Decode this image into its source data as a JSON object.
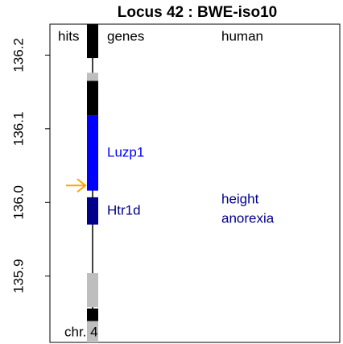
{
  "chart_data": {
    "type": "locus",
    "title": "Locus 42 : BWE-iso10",
    "column_labels": [
      "hits",
      "genes",
      "human"
    ],
    "chromosome_label": "chr. 4",
    "ylim": [
      135.81,
      136.242
    ],
    "yticks": [
      {
        "value": 135.9,
        "label": "135.9"
      },
      {
        "value": 136.0,
        "label": "136.0"
      },
      {
        "value": 136.1,
        "label": "136.1"
      },
      {
        "value": 136.2,
        "label": "136.2"
      }
    ],
    "segments": [
      {
        "range": [
          136.196,
          136.242
        ],
        "color": "#000000"
      },
      {
        "range": [
          136.165,
          136.176
        ],
        "color": "#bebebe"
      },
      {
        "range": [
          136.118,
          136.165
        ],
        "color": "#000000"
      },
      {
        "range": [
          136.016,
          136.118
        ],
        "color": "#0000ff",
        "name": "Luzp1"
      },
      {
        "range": [
          135.97,
          136.007
        ],
        "color": "#00008b",
        "name": "Htr1d"
      },
      {
        "range": [
          135.858,
          135.904
        ],
        "color": "#bebebe"
      },
      {
        "range": [
          135.839,
          135.856
        ],
        "color": "#000000"
      },
      {
        "range": [
          135.81,
          135.839
        ],
        "color": "#bebebe"
      }
    ],
    "traits": {
      "names": [
        "height",
        "anorexia"
      ],
      "color": "#00008b"
    },
    "arrow": {
      "value": 136.023,
      "color": "#ffa500"
    }
  }
}
